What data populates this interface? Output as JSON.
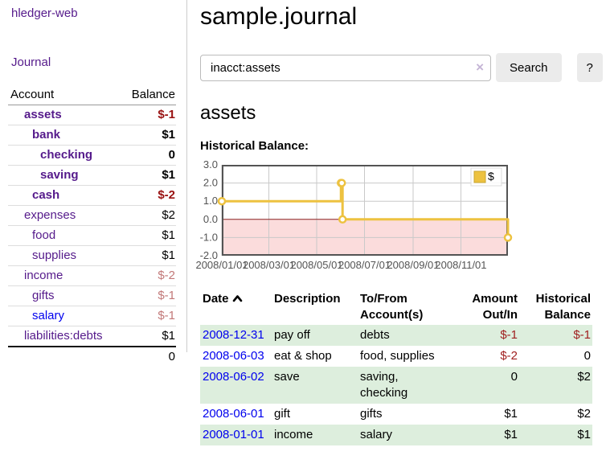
{
  "app": {
    "brand": "hledger-web",
    "nav_journal": "Journal"
  },
  "sidebar": {
    "accounts_header": {
      "account": "Account",
      "balance": "Balance"
    },
    "accounts": [
      {
        "name": "assets",
        "depth": 1,
        "bold": true,
        "balance": "$-1",
        "negative": "strong",
        "link_color": "purple"
      },
      {
        "name": "bank",
        "depth": 2,
        "bold": true,
        "balance": "$1",
        "negative": null,
        "link_color": "purple"
      },
      {
        "name": "checking",
        "depth": 3,
        "bold": true,
        "balance": "0",
        "negative": null,
        "link_color": "purple"
      },
      {
        "name": "saving",
        "depth": 3,
        "bold": true,
        "balance": "$1",
        "negative": null,
        "link_color": "purple"
      },
      {
        "name": "cash",
        "depth": 2,
        "bold": true,
        "balance": "$-2",
        "negative": "strong",
        "link_color": "purple"
      },
      {
        "name": "expenses",
        "depth": 1,
        "bold": false,
        "balance": "$2",
        "negative": null,
        "link_color": "purple"
      },
      {
        "name": "food",
        "depth": 2,
        "bold": false,
        "balance": "$1",
        "negative": null,
        "link_color": "purple"
      },
      {
        "name": "supplies",
        "depth": 2,
        "bold": false,
        "balance": "$1",
        "negative": null,
        "link_color": "purple"
      },
      {
        "name": "income",
        "depth": 1,
        "bold": false,
        "balance": "$-2",
        "negative": "soft",
        "link_color": "purple"
      },
      {
        "name": "gifts",
        "depth": 2,
        "bold": false,
        "balance": "$-1",
        "negative": "soft",
        "link_color": "purple"
      },
      {
        "name": "salary",
        "depth": 2,
        "bold": false,
        "balance": "$-1",
        "negative": "soft",
        "link_color": "blue"
      },
      {
        "name": "liabilities:debts",
        "depth": 1,
        "bold": false,
        "balance": "$1",
        "negative": null,
        "link_color": "purple"
      }
    ],
    "total": "0"
  },
  "main": {
    "title": "sample.journal",
    "search": {
      "value": "inacct:assets",
      "clear_icon": "×",
      "button_label": "Search",
      "help_label": "?"
    },
    "account_heading": "assets",
    "chart_label": "Historical Balance:",
    "register": {
      "headers": {
        "date": "Date",
        "description": "Description",
        "accounts": "To/From Account(s)",
        "amount": "Amount Out/In",
        "balance": "Historical Balance"
      },
      "rows": [
        {
          "date": "2008-12-31",
          "description": "pay off",
          "accounts": "debts",
          "amount": "$-1",
          "amount_negative": true,
          "balance": "$-1",
          "balance_negative": true
        },
        {
          "date": "2008-06-03",
          "description": "eat & shop",
          "accounts": "food, supplies",
          "amount": "$-2",
          "amount_negative": true,
          "balance": "0",
          "balance_negative": false
        },
        {
          "date": "2008-06-02",
          "description": "save",
          "accounts": "saving, checking",
          "amount": "0",
          "amount_negative": false,
          "balance": "$2",
          "balance_negative": false
        },
        {
          "date": "2008-06-01",
          "description": "gift",
          "accounts": "gifts",
          "amount": "$1",
          "amount_negative": false,
          "balance": "$2",
          "balance_negative": false
        },
        {
          "date": "2008-01-01",
          "description": "income",
          "accounts": "salary",
          "amount": "$1",
          "amount_negative": false,
          "balance": "$1",
          "balance_negative": false
        }
      ]
    }
  },
  "colors": {
    "link_purple": "#551a8b",
    "link_blue": "#0000ee",
    "negative_strong": "#991111",
    "negative_soft": "#c27878",
    "negative_table": "#a02020",
    "row_stripe_green": "#ddeedd",
    "chart_series": "#edc240",
    "chart_negative_fill": "#fbdcdc",
    "chart_zero_line": "#8b2020",
    "chart_border": "#545454",
    "chart_grid": "#c9c9c9"
  },
  "chart_data": {
    "type": "line",
    "title": "Historical Balance:",
    "step": true,
    "series": [
      {
        "name": "$",
        "color": "#edc240",
        "points": [
          [
            "2008-01-01",
            1
          ],
          [
            "2008-06-01",
            2
          ],
          [
            "2008-06-02",
            2
          ],
          [
            "2008-06-03",
            0
          ],
          [
            "2008-12-31",
            -1
          ]
        ]
      }
    ],
    "xlim": [
      "2008-01-01",
      "2008-12-31"
    ],
    "ylim": [
      -2,
      3
    ],
    "x_ticks": [
      "2008/01/01",
      "2008/03/01",
      "2008/05/01",
      "2008/07/01",
      "2008/09/01",
      "2008/11/01"
    ],
    "y_ticks": [
      3.0,
      2.0,
      1.0,
      0.0,
      -1.0,
      -2.0
    ],
    "grid": true,
    "legend": {
      "label": "$",
      "position": "top-right"
    },
    "negative_region_shaded": true
  }
}
